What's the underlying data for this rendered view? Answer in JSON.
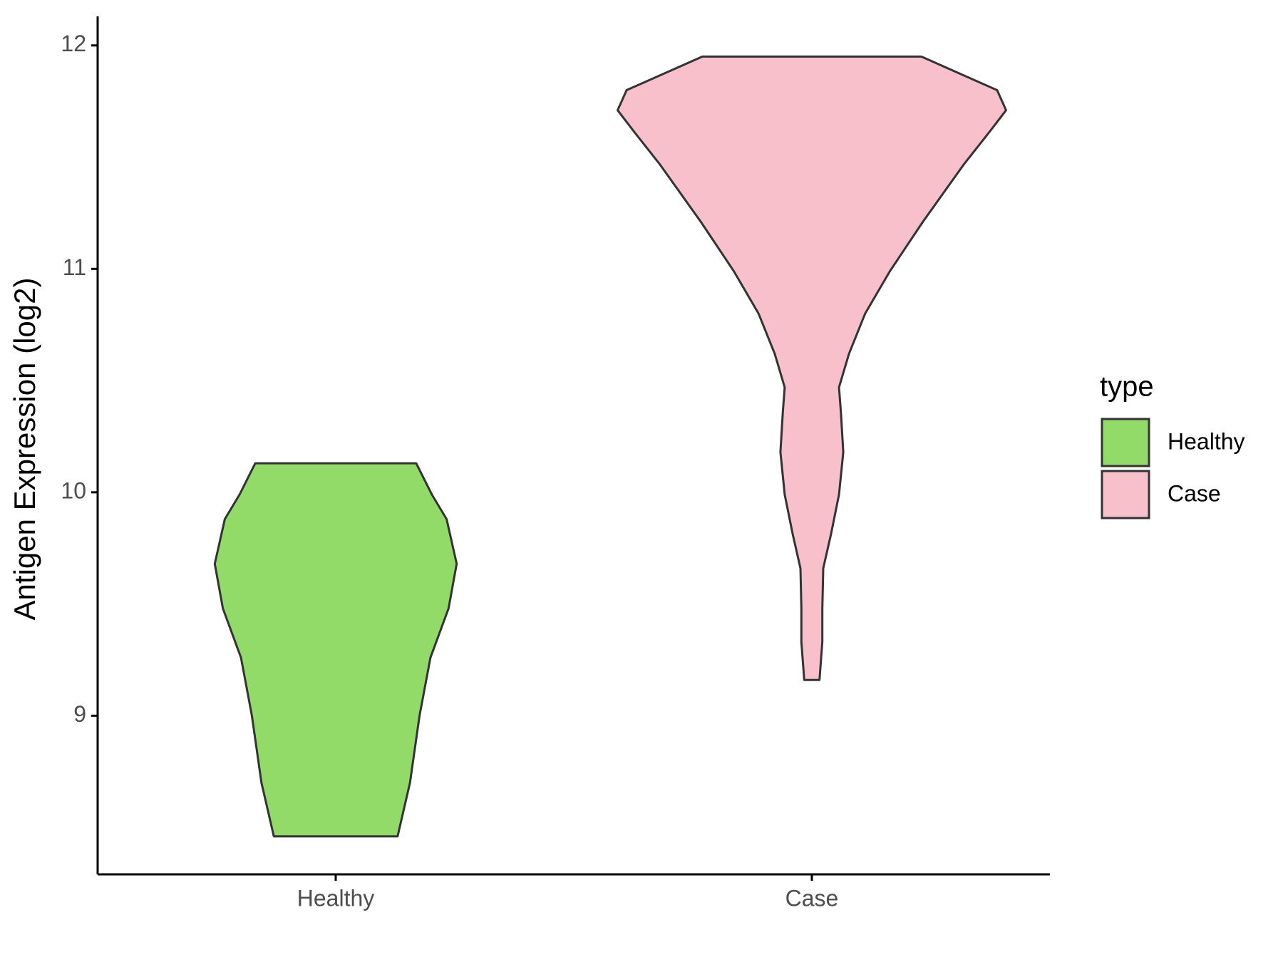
{
  "chart_data": {
    "type": "violin",
    "y_label": "Antigen Expression (log2)",
    "legend_title": "type",
    "categories": [
      "Healthy",
      "Case"
    ],
    "ylim": [
      8.29,
      12.13
    ],
    "yticks": [
      9,
      10,
      11,
      12
    ],
    "series": [
      {
        "name": "Healthy",
        "color": "#93DB69",
        "y": [
          8.46,
          8.7,
          9.0,
          9.26,
          9.48,
          9.68,
          9.88,
          9.99,
          10.13
        ],
        "half_widths": [
          0.13,
          0.156,
          0.176,
          0.199,
          0.237,
          0.254,
          0.233,
          0.202,
          0.169
        ]
      },
      {
        "name": "Case",
        "color": "#F7C0CB",
        "y": [
          9.16,
          9.33,
          9.48,
          9.66,
          9.81,
          9.99,
          10.18,
          10.36,
          10.47,
          10.62,
          10.8,
          10.99,
          11.21,
          11.47,
          11.61,
          11.71,
          11.8,
          11.95
        ],
        "half_widths": [
          0.016,
          0.022,
          0.022,
          0.024,
          0.04,
          0.057,
          0.066,
          0.061,
          0.057,
          0.078,
          0.112,
          0.164,
          0.233,
          0.32,
          0.372,
          0.408,
          0.389,
          0.23
        ]
      }
    ]
  }
}
